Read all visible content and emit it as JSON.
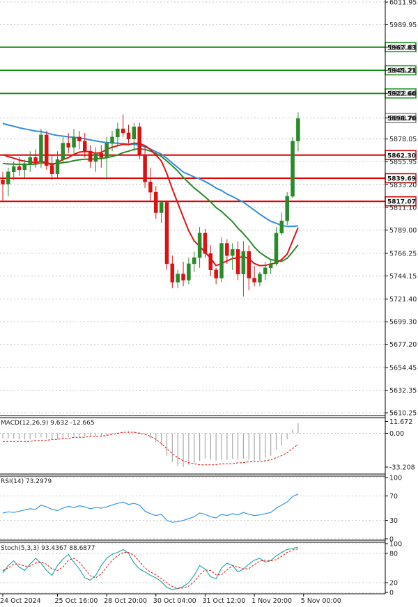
{
  "chart_data": [
    {
      "type": "candlestick",
      "panel": "price",
      "y_ticks": [
        "6011.95",
        "5989.95",
        "5967.83",
        "5945.21",
        "5922.60",
        "5898.70",
        "5878.05",
        "5855.95",
        "5833.20",
        "5811.10",
        "5789.00",
        "5766.25",
        "5744.15",
        "5721.40",
        "5699.30",
        "5677.20",
        "5654.45",
        "5632.35",
        "5610.25"
      ],
      "ylim": [
        5610.25,
        6011.95
      ],
      "x_tick_labels": [
        "24 Oct 2024",
        "25 Oct 16:00",
        "28 Oct 20:00",
        "30 Oct 04:00",
        "31 Oct 12:00",
        "1 Nov 20:00",
        "5 Nov 00:00"
      ],
      "x_tick_bar_index": [
        0,
        10,
        19,
        28,
        37,
        46,
        55
      ],
      "candles": [
        [
          5838,
          5846,
          5818,
          5834
        ],
        [
          5834,
          5850,
          5822,
          5846
        ],
        [
          5846,
          5856,
          5838,
          5851
        ],
        [
          5851,
          5860,
          5842,
          5848
        ],
        [
          5848,
          5858,
          5840,
          5854
        ],
        [
          5854,
          5866,
          5846,
          5860
        ],
        [
          5860,
          5868,
          5850,
          5856
        ],
        [
          5856,
          5888,
          5850,
          5882
        ],
        [
          5882,
          5886,
          5848,
          5852
        ],
        [
          5852,
          5862,
          5838,
          5844
        ],
        [
          5844,
          5866,
          5840,
          5858
        ],
        [
          5858,
          5880,
          5854,
          5874
        ],
        [
          5874,
          5884,
          5864,
          5870
        ],
        [
          5870,
          5888,
          5864,
          5880
        ],
        [
          5880,
          5886,
          5868,
          5876
        ],
        [
          5876,
          5884,
          5860,
          5866
        ],
        [
          5866,
          5872,
          5850,
          5856
        ],
        [
          5856,
          5870,
          5846,
          5864
        ],
        [
          5864,
          5872,
          5850,
          5860
        ],
        [
          5860,
          5880,
          5838,
          5874
        ],
        [
          5874,
          5886,
          5866,
          5880
        ],
        [
          5880,
          5894,
          5872,
          5888
        ],
        [
          5888,
          5902,
          5880,
          5884
        ],
        [
          5884,
          5892,
          5874,
          5878
        ],
        [
          5878,
          5894,
          5866,
          5890
        ],
        [
          5890,
          5894,
          5858,
          5862
        ],
        [
          5862,
          5872,
          5830,
          5836
        ],
        [
          5836,
          5850,
          5818,
          5826
        ],
        [
          5826,
          5832,
          5800,
          5806
        ],
        [
          5806,
          5818,
          5796,
          5816
        ],
        [
          5816,
          5818,
          5750,
          5756
        ],
        [
          5756,
          5764,
          5732,
          5738
        ],
        [
          5738,
          5750,
          5732,
          5746
        ],
        [
          5746,
          5758,
          5734,
          5740
        ],
        [
          5740,
          5762,
          5736,
          5756
        ],
        [
          5756,
          5768,
          5748,
          5762
        ],
        [
          5762,
          5792,
          5752,
          5786
        ],
        [
          5786,
          5790,
          5762,
          5766
        ],
        [
          5766,
          5774,
          5744,
          5750
        ],
        [
          5750,
          5752,
          5736,
          5742
        ],
        [
          5742,
          5782,
          5738,
          5776
        ],
        [
          5776,
          5780,
          5756,
          5764
        ],
        [
          5764,
          5776,
          5750,
          5770
        ],
        [
          5770,
          5778,
          5740,
          5746
        ],
        [
          5746,
          5778,
          5724,
          5768
        ],
        [
          5768,
          5774,
          5730,
          5742
        ],
        [
          5742,
          5754,
          5734,
          5738
        ],
        [
          5738,
          5748,
          5734,
          5746
        ],
        [
          5746,
          5758,
          5740,
          5752
        ],
        [
          5752,
          5760,
          5746,
          5756
        ],
        [
          5756,
          5792,
          5754,
          5786
        ],
        [
          5786,
          5806,
          5784,
          5798
        ],
        [
          5798,
          5826,
          5794,
          5822
        ],
        [
          5822,
          5880,
          5820,
          5876
        ],
        [
          5876,
          5904,
          5866,
          5898
        ]
      ],
      "horizontal_lines": [
        {
          "value": 5967.83,
          "label": "5967.83",
          "color": "#0a8a0a"
        },
        {
          "value": 5945.21,
          "label": "5945.21",
          "color": "#0a8a0a"
        },
        {
          "value": 5922.6,
          "label": "5922.60",
          "color": "#0a8a0a"
        },
        {
          "value": 5862.3,
          "label": "5862.30",
          "color": "#e00000"
        },
        {
          "value": 5839.69,
          "label": "5839.69",
          "color": "#e00000"
        },
        {
          "value": 5817.07,
          "label": "5817.07",
          "color": "#e00000"
        }
      ],
      "last_price": "5898.70",
      "colors": {
        "bull": "#2a8a2a",
        "bear": "#dd1111",
        "ma_fast": "#e81010",
        "ma_mid": "#2a8a2a",
        "ma_slow": "#2f8fe0"
      }
    },
    {
      "type": "macd",
      "panel": "macd",
      "label": "MACD(12,26,9) 9.632 -12.665",
      "y_ticks": [
        "11.672",
        "0.00",
        "-33.208"
      ],
      "ylim": [
        -38,
        14
      ],
      "hist": [
        -5,
        -5,
        -5,
        -6,
        -6,
        -6,
        -5,
        -4,
        -5,
        -6,
        -6,
        -5,
        -4,
        -3,
        -3,
        -3,
        -3,
        -3,
        -3,
        -2,
        -1,
        0,
        1,
        2,
        2,
        1,
        -1,
        -5,
        -9,
        -12,
        -22,
        -28,
        -32,
        -33,
        -31,
        -29,
        -27,
        -25,
        -26,
        -27,
        -26,
        -26,
        -25,
        -26,
        -25,
        -26,
        -27,
        -27,
        -24,
        -22,
        -16,
        -12,
        -6,
        4,
        10
      ],
      "signal": [
        -8,
        -8,
        -8,
        -8,
        -8,
        -8,
        -7,
        -7,
        -7,
        -6,
        -6,
        -5,
        -5,
        -4,
        -4,
        -4,
        -3,
        -3,
        -3,
        -2,
        -1,
        0,
        1,
        1,
        1,
        0,
        -1,
        -3,
        -6,
        -10,
        -15,
        -20,
        -24,
        -27,
        -29,
        -30,
        -31,
        -31,
        -31,
        -31,
        -30,
        -30,
        -30,
        -29,
        -29,
        -28,
        -28,
        -28,
        -27,
        -26,
        -24,
        -22,
        -19,
        -15,
        -11
      ]
    },
    {
      "type": "line",
      "panel": "rsi",
      "label": "RSI(14) 73.2979",
      "y_ticks": [
        "100",
        "70",
        "30",
        "0"
      ],
      "ylim": [
        0,
        100
      ],
      "values": [
        42,
        44,
        43,
        45,
        47,
        49,
        48,
        55,
        52,
        48,
        46,
        50,
        53,
        51,
        54,
        52,
        49,
        51,
        50,
        52,
        55,
        58,
        60,
        56,
        58,
        55,
        45,
        41,
        38,
        40,
        30,
        27,
        28,
        30,
        33,
        36,
        42,
        40,
        36,
        34,
        40,
        38,
        41,
        39,
        43,
        40,
        38,
        39,
        41,
        43,
        50,
        55,
        60,
        69,
        73
      ]
    },
    {
      "type": "line",
      "panel": "stoch",
      "label": "Stoch(5,3,3) 93.4367 88.6877",
      "y_ticks": [
        "100",
        "80",
        "20",
        "0"
      ],
      "ylim": [
        0,
        100
      ],
      "k": [
        40,
        55,
        65,
        52,
        45,
        58,
        70,
        60,
        45,
        35,
        55,
        68,
        78,
        62,
        48,
        30,
        25,
        35,
        55,
        70,
        78,
        82,
        88,
        80,
        60,
        48,
        42,
        35,
        30,
        22,
        10,
        6,
        8,
        12,
        20,
        35,
        55,
        48,
        32,
        28,
        50,
        60,
        55,
        42,
        48,
        58,
        66,
        70,
        62,
        65,
        75,
        82,
        88,
        90,
        93
      ],
      "d": [
        45,
        50,
        58,
        58,
        54,
        54,
        60,
        62,
        58,
        48,
        45,
        52,
        66,
        70,
        62,
        48,
        34,
        30,
        38,
        52,
        66,
        75,
        82,
        82,
        76,
        63,
        50,
        42,
        36,
        28,
        20,
        12,
        8,
        9,
        13,
        22,
        36,
        46,
        45,
        36,
        36,
        46,
        55,
        52,
        48,
        49,
        57,
        64,
        66,
        65,
        67,
        74,
        82,
        87,
        89
      ]
    }
  ]
}
